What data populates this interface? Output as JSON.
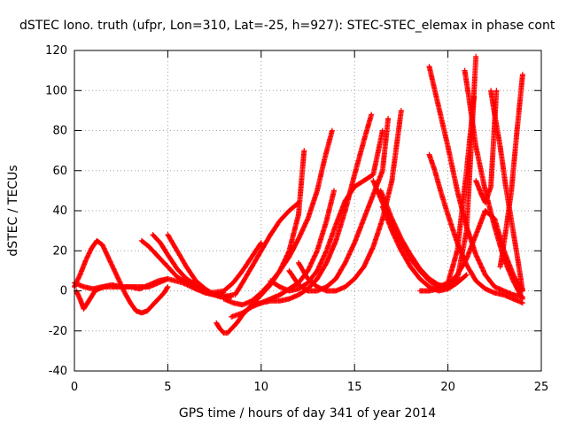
{
  "chart_data": {
    "type": "scatter",
    "title": "dSTEC Iono. truth (ufpr, Lon=310, Lat=-25, h=927): STEC-STEC_elemax in phase cont",
    "xlabel": "GPS time / hours of day 341 of year 2014",
    "ylabel": "dSTEC  / TECUs",
    "xlim": [
      0,
      25
    ],
    "ylim": [
      -40,
      120
    ],
    "xticks": [
      "0",
      "5",
      "10",
      "15",
      "20",
      "25"
    ],
    "yticks": [
      "-40",
      "-20",
      "0",
      "20",
      "40",
      "60",
      "80",
      "100",
      "120"
    ],
    "grid": true,
    "marker": "+",
    "color": "#ff0000",
    "series": [
      {
        "x": [
          0.0,
          0.3,
          0.6,
          0.9,
          1.2,
          1.5,
          1.8,
          2.1,
          2.4,
          2.7,
          3.0,
          3.3,
          3.6,
          3.9,
          4.2,
          4.5,
          4.8,
          5.0
        ],
        "y": [
          2,
          8,
          15,
          21,
          25,
          23,
          17,
          11,
          5,
          -1,
          -6,
          -10,
          -11,
          -10,
          -7,
          -4,
          -1,
          2
        ]
      },
      {
        "x": [
          0.1,
          0.3,
          0.5,
          0.7,
          0.9,
          1.1,
          1.3,
          1.6,
          2.0,
          2.5,
          3.0,
          3.5,
          4.0,
          4.5,
          5.0
        ],
        "y": [
          0,
          -4,
          -9,
          -6,
          -3,
          0,
          1,
          2,
          2,
          2,
          2,
          1,
          3,
          5,
          6
        ]
      },
      {
        "x": [
          0.0,
          0.5,
          1.0,
          1.5,
          2.0,
          2.5,
          3.0,
          3.5,
          4.0,
          4.5,
          5.0
        ],
        "y": [
          4,
          2,
          1,
          2,
          3,
          2,
          2,
          2,
          2,
          4,
          6
        ]
      },
      {
        "x": [
          3.6,
          4.0,
          4.5,
          5.0,
          5.5,
          6.0,
          6.5,
          7.0,
          7.5,
          8.0
        ],
        "y": [
          25,
          22,
          17,
          12,
          7,
          4,
          1,
          -1,
          -2,
          -1
        ]
      },
      {
        "x": [
          4.2,
          4.6,
          5.0,
          5.5,
          6.0,
          6.5,
          7.0,
          7.5,
          8.0
        ],
        "y": [
          28,
          24,
          18,
          11,
          6,
          3,
          0,
          -2,
          -2
        ]
      },
      {
        "x": [
          5.0,
          5.5,
          6.0,
          6.5,
          7.0,
          7.5,
          8.0,
          8.5
        ],
        "y": [
          28,
          20,
          12,
          5,
          1,
          -2,
          -3,
          -2
        ]
      },
      {
        "x": [
          5.0,
          5.8,
          6.5,
          7.2,
          7.8,
          8.4
        ],
        "y": [
          6,
          4,
          1,
          -1,
          -3,
          -3
        ]
      },
      {
        "x": [
          7.6,
          7.8,
          8.0,
          8.2,
          8.4,
          8.7,
          9.0,
          9.5,
          10.0,
          10.5,
          11.0,
          11.5,
          12.0,
          12.3
        ],
        "y": [
          -16,
          -19,
          -21,
          -21,
          -19,
          -16,
          -12,
          -7,
          -2,
          3,
          10,
          20,
          38,
          70
        ]
      },
      {
        "x": [
          8.0,
          8.5,
          9.0,
          9.5,
          10.0,
          10.5,
          11.0,
          11.5,
          12.0,
          12.5,
          13.0,
          13.4,
          13.8
        ],
        "y": [
          -4,
          -6,
          -7,
          -5,
          -1,
          4,
          10,
          17,
          26,
          36,
          50,
          66,
          80
        ]
      },
      {
        "x": [
          8.4,
          9.0,
          9.5,
          10.0,
          10.5,
          11.0,
          11.5,
          12.0,
          12.5,
          13.0,
          13.5,
          13.9
        ],
        "y": [
          -13,
          -11,
          -8,
          -6,
          -4,
          -2,
          1,
          4,
          10,
          20,
          35,
          50
        ]
      },
      {
        "x": [
          8.6,
          9.0,
          9.5,
          10.0,
          10.5,
          11.0,
          11.5,
          12.0
        ],
        "y": [
          -2,
          4,
          12,
          20,
          28,
          35,
          40,
          44
        ]
      },
      {
        "x": [
          9.5,
          10.0,
          10.5,
          11.0,
          11.5,
          12.0,
          12.5,
          13.0,
          13.5,
          14.0,
          14.5,
          15.0,
          15.5,
          15.9
        ],
        "y": [
          -7,
          -6,
          -5,
          -5,
          -4,
          -2,
          1,
          6,
          14,
          25,
          40,
          58,
          75,
          88
        ]
      },
      {
        "x": [
          7.3,
          8.0,
          8.5,
          9.0,
          9.5,
          10.0
        ],
        "y": [
          -1,
          0,
          4,
          10,
          17,
          24
        ]
      },
      {
        "x": [
          10.5,
          11.0,
          11.5,
          12.0,
          12.5,
          13.0,
          13.5,
          14.0,
          14.5,
          15.0,
          15.5,
          16.0,
          16.5
        ],
        "y": [
          5,
          2,
          0,
          1,
          4,
          10,
          20,
          33,
          45,
          52,
          55,
          58,
          80
        ]
      },
      {
        "x": [
          11.5,
          12.0,
          12.5,
          13.0,
          13.5,
          14.0,
          14.5,
          15.0,
          15.5,
          16.0,
          16.5,
          16.8
        ],
        "y": [
          10,
          3,
          0,
          0,
          2,
          6,
          14,
          24,
          36,
          48,
          60,
          86
        ]
      },
      {
        "x": [
          12.0,
          12.5,
          13.0,
          13.5,
          14.0,
          14.5,
          15.0,
          15.5,
          16.0,
          16.5,
          17.0,
          17.5
        ],
        "y": [
          14,
          6,
          2,
          0,
          0,
          2,
          6,
          12,
          22,
          36,
          55,
          90
        ]
      },
      {
        "x": [
          16.5,
          17.0,
          17.5,
          18.0,
          18.5,
          19.0,
          19.5,
          20.0,
          20.5,
          21.0
        ],
        "y": [
          42,
          30,
          20,
          12,
          6,
          2,
          0,
          1,
          4,
          8
        ]
      },
      {
        "x": [
          16.4,
          17.0,
          17.5,
          18.0,
          18.5,
          19.0,
          19.5,
          20.0,
          20.5,
          21.0,
          21.5
        ],
        "y": [
          50,
          36,
          26,
          18,
          11,
          6,
          3,
          2,
          6,
          30,
          117
        ]
      },
      {
        "x": [
          16.0,
          16.5,
          17.0,
          17.5,
          18.0,
          18.5,
          19.0,
          19.5,
          20.0,
          20.5,
          21.0,
          21.4
        ],
        "y": [
          55,
          44,
          33,
          24,
          16,
          10,
          5,
          2,
          4,
          20,
          60,
          97
        ]
      },
      {
        "x": [
          19.0,
          19.3,
          19.6,
          20.0,
          20.5,
          21.0,
          21.5,
          22.0,
          22.5,
          23.0,
          23.5,
          24.0
        ],
        "y": [
          112,
          100,
          88,
          72,
          50,
          32,
          18,
          8,
          2,
          0,
          -2,
          -3
        ]
      },
      {
        "x": [
          19.0,
          19.3,
          19.6,
          20.0,
          20.5,
          21.0,
          21.5,
          22.0,
          22.5,
          23.0,
          23.5,
          24.0
        ],
        "y": [
          68,
          60,
          50,
          38,
          24,
          13,
          5,
          1,
          -1,
          -2,
          -4,
          -6
        ]
      },
      {
        "x": [
          20.9,
          21.1,
          21.3,
          21.5,
          22.0,
          22.5,
          23.0,
          23.5,
          24.0
        ],
        "y": [
          110,
          98,
          85,
          72,
          50,
          32,
          16,
          5,
          -4
        ]
      },
      {
        "x": [
          21.5,
          21.8,
          22.0,
          22.3,
          22.6
        ],
        "y": [
          55,
          48,
          44,
          52,
          100
        ]
      },
      {
        "x": [
          22.3,
          22.5,
          22.8,
          23.1,
          23.4,
          23.7,
          24.0
        ],
        "y": [
          100,
          88,
          72,
          52,
          35,
          18,
          0
        ]
      },
      {
        "x": [
          22.8,
          23.1,
          23.4,
          23.7,
          24.0
        ],
        "y": [
          12,
          30,
          50,
          80,
          108
        ]
      },
      {
        "x": [
          18.5,
          19.0,
          19.5,
          20.0,
          20.5,
          21.0,
          21.5,
          22.0,
          22.5,
          23.0,
          23.5,
          24.0
        ],
        "y": [
          0,
          0,
          1,
          3,
          8,
          16,
          28,
          40,
          36,
          20,
          8,
          0
        ]
      }
    ]
  }
}
